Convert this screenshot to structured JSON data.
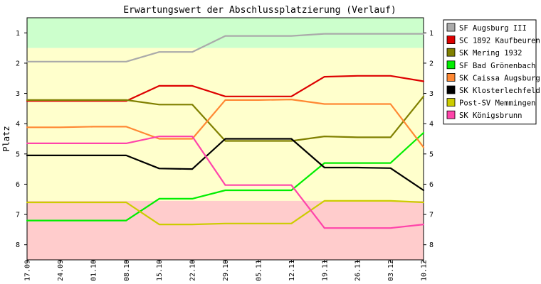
{
  "chart_data": {
    "type": "line",
    "title": "Erwartungswert der Abschlussplatzierung (Verlauf)",
    "ylabel": "Platz",
    "xlabel": "",
    "categories": [
      "17.09",
      "24.09",
      "01.10",
      "08.10",
      "15.10",
      "22.10",
      "29.10",
      "05.11",
      "12.11",
      "19.11",
      "26.11",
      "03.12",
      "10.12"
    ],
    "ylim": [
      8.5,
      0.5
    ],
    "y_ticks": [
      "1",
      "2",
      "3",
      "4",
      "5",
      "6",
      "7",
      "8"
    ],
    "y_axis_inverted": true,
    "grid": false,
    "legend_position": "right",
    "zones": [
      {
        "from": 0.5,
        "to": 1.5,
        "color": "#ccffcc"
      },
      {
        "from": 1.5,
        "to": 6.55,
        "color": "#ffffcc"
      },
      {
        "from": 6.55,
        "to": 8.5,
        "color": "#ffcccc"
      }
    ],
    "series": [
      {
        "name": "SF Augsburg III",
        "color": "#aaaaaa",
        "values": [
          1.95,
          1.95,
          1.95,
          1.95,
          1.63,
          1.63,
          1.1,
          1.1,
          1.1,
          1.03,
          1.03,
          1.03,
          1.03
        ]
      },
      {
        "name": "SC 1892 Kaufbeuren",
        "color": "#dd0000",
        "values": [
          3.25,
          3.25,
          3.25,
          3.25,
          2.75,
          2.75,
          3.1,
          3.1,
          3.1,
          2.45,
          2.42,
          2.42,
          2.6
        ]
      },
      {
        "name": "SK Mering 1932",
        "color": "#808000",
        "values": [
          3.22,
          3.22,
          3.22,
          3.22,
          3.37,
          3.37,
          4.57,
          4.57,
          4.57,
          4.42,
          4.45,
          4.45,
          3.1
        ]
      },
      {
        "name": "SF Bad Grönenbach",
        "color": "#00ee00",
        "values": [
          7.2,
          7.2,
          7.2,
          7.2,
          6.48,
          6.48,
          6.2,
          6.2,
          6.2,
          5.3,
          5.3,
          5.3,
          4.3
        ]
      },
      {
        "name": "SK Caissa Augsburg",
        "color": "#ff8833",
        "values": [
          4.12,
          4.12,
          4.1,
          4.1,
          4.5,
          4.5,
          3.22,
          3.22,
          3.2,
          3.35,
          3.35,
          3.35,
          4.78
        ]
      },
      {
        "name": "SK Klosterlechfeld",
        "color": "#000000",
        "values": [
          5.05,
          5.05,
          5.05,
          5.05,
          5.48,
          5.5,
          4.5,
          4.5,
          4.5,
          5.45,
          5.45,
          5.47,
          6.2
        ]
      },
      {
        "name": "Post-SV Memmingen",
        "color": "#cccc00",
        "values": [
          6.6,
          6.6,
          6.6,
          6.6,
          7.33,
          7.33,
          7.3,
          7.3,
          7.3,
          6.55,
          6.55,
          6.55,
          6.6
        ]
      },
      {
        "name": "SK Königsbrunn",
        "color": "#ff44aa",
        "values": [
          4.65,
          4.65,
          4.65,
          4.65,
          4.42,
          4.42,
          6.03,
          6.03,
          6.03,
          7.45,
          7.45,
          7.45,
          7.33
        ]
      }
    ]
  }
}
